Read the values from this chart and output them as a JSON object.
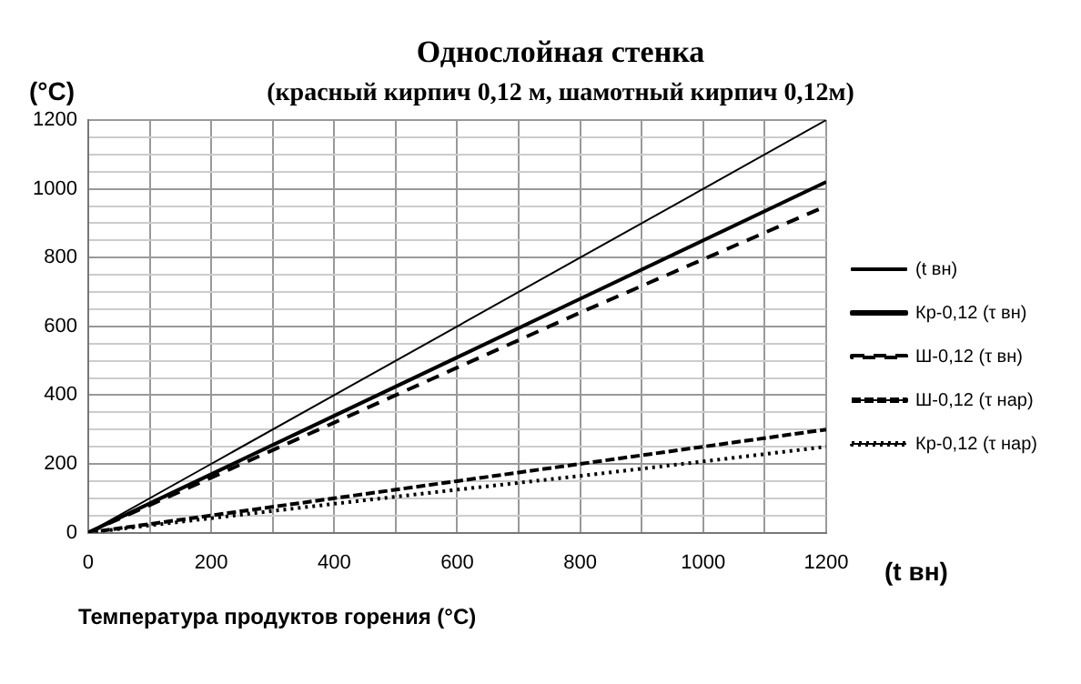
{
  "chart_data": {
    "type": "line",
    "title": "Однослойная стенка",
    "subtitle": "(красный кирпич 0,12 м, шамотный кирпич 0,12м)",
    "ylabel": "(°C)",
    "xlabel": "Температура продуктов горения (°C)",
    "annotations": [
      "(t вн)"
    ],
    "x": [
      0,
      200,
      400,
      600,
      800,
      1000,
      1200
    ],
    "xlim": [
      0,
      1200
    ],
    "xticks": [
      0,
      {
        "value": 100,
        "label": null
      },
      200,
      {
        "value": 300,
        "label": null
      },
      400,
      {
        "value": 500,
        "label": null
      },
      600,
      {
        "value": 700,
        "label": null
      },
      800,
      {
        "value": 900,
        "label": null
      },
      1000,
      {
        "value": 1100,
        "label": null
      },
      1200
    ],
    "ylim": [
      0,
      1200
    ],
    "yticks": [
      0,
      {
        "value": 50,
        "label": null
      },
      {
        "value": 100,
        "label": null
      },
      {
        "value": 150,
        "label": null
      },
      200,
      {
        "value": 250,
        "label": null
      },
      {
        "value": 300,
        "label": null
      },
      {
        "value": 350,
        "label": null
      },
      400,
      {
        "value": 450,
        "label": null
      },
      {
        "value": 500,
        "label": null
      },
      {
        "value": 550,
        "label": null
      },
      600,
      {
        "value": 650,
        "label": null
      },
      {
        "value": 700,
        "label": null
      },
      {
        "value": 750,
        "label": null
      },
      800,
      {
        "value": 850,
        "label": null
      },
      {
        "value": 900,
        "label": null
      },
      {
        "value": 950,
        "label": null
      },
      1000,
      {
        "value": 1050,
        "label": null
      },
      {
        "value": 1100,
        "label": null
      },
      {
        "value": 1150,
        "label": null
      },
      1200
    ],
    "grid": true,
    "legend": "right",
    "marker": "none",
    "series": [
      {
        "name": "(t вн)",
        "color": "#000000",
        "line_style": "solid",
        "values": [
          0,
          200,
          400,
          600,
          800,
          1000,
          1200
        ]
      },
      {
        "name": "Кр-0,12 (τ вн)",
        "color": "#000000",
        "line_style": "solid",
        "values": [
          0,
          170,
          340,
          510,
          680,
          850,
          1020
        ]
      },
      {
        "name": "Ш-0,12 (τ вн)",
        "color": "#000000",
        "line_style": "dashed",
        "values": [
          0,
          160,
          320,
          480,
          640,
          795,
          950
        ]
      },
      {
        "name": "Ш-0,12 (τ нар)",
        "color": "#000000",
        "line_style": "dashed",
        "values": [
          0,
          50,
          100,
          150,
          200,
          250,
          300
        ]
      },
      {
        "name": "Кр-0,12 (τ нар)",
        "color": "#000000",
        "line_style": "dotted",
        "values": [
          0,
          42,
          84,
          125,
          165,
          207,
          250
        ]
      }
    ]
  }
}
